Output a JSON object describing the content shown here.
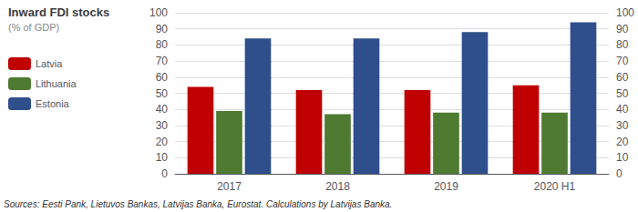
{
  "chart_data": {
    "type": "bar",
    "title": "Inward FDI stocks",
    "subtitle": "(% of GDP)",
    "categories": [
      "2017",
      "2018",
      "2019",
      "2020 H1"
    ],
    "series": [
      {
        "name": "Latvia",
        "color": "#c00000",
        "values": [
          54,
          52,
          52,
          55
        ]
      },
      {
        "name": "Lithuania",
        "color": "#4e7a31",
        "values": [
          39,
          37,
          38,
          38
        ]
      },
      {
        "name": "Estonia",
        "color": "#2e4f8c",
        "values": [
          84,
          84,
          88,
          94
        ]
      }
    ],
    "ylim": [
      0,
      100
    ],
    "yticks": [
      0,
      10,
      20,
      30,
      40,
      50,
      60,
      70,
      80,
      90,
      100
    ],
    "y2lim": [
      0,
      100
    ],
    "y2ticks": [
      0,
      10,
      20,
      30,
      40,
      50,
      60,
      70,
      80,
      90,
      100
    ],
    "grid": true,
    "legend": "left",
    "annotations": [
      "Sources: Eesti Pank, Lietuvos Bankas, Latvijas Banka, Eurostat. Calculations by Latvijas Banka."
    ]
  }
}
